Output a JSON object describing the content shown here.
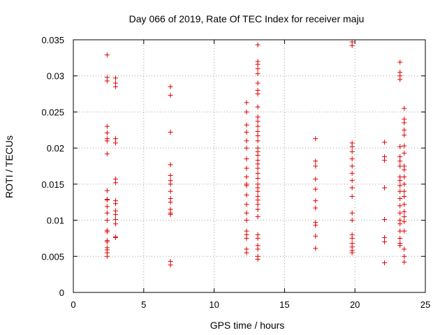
{
  "chart_data": {
    "type": "scatter",
    "title": "Day 066 of 2019, Rate Of TEC Index for receiver maju",
    "xlabel": "GPS time / hours",
    "ylabel": "ROTI / TECUs",
    "xlim": [
      0,
      25
    ],
    "ylim": [
      0,
      0.035
    ],
    "grid": true,
    "marker": "+",
    "color": "#e00000",
    "x_ticks": [
      0,
      5,
      10,
      15,
      20,
      25
    ],
    "x_tick_labels": [
      "0",
      "5",
      "10",
      "15",
      "20",
      "25"
    ],
    "y_ticks": [
      0,
      0.005,
      0.01,
      0.015,
      0.02,
      0.025,
      0.03,
      0.035
    ],
    "y_tick_labels": [
      "0",
      "0.005",
      "0.01",
      "0.015",
      "0.02",
      "0.025",
      "0.03",
      "0.035"
    ],
    "series": [
      {
        "name": "ROTI",
        "points": [
          [
            2.4,
            0.0329
          ],
          [
            2.4,
            0.0298
          ],
          [
            2.4,
            0.0293
          ],
          [
            2.4,
            0.023
          ],
          [
            2.4,
            0.0221
          ],
          [
            2.4,
            0.0213
          ],
          [
            2.4,
            0.021
          ],
          [
            2.4,
            0.0192
          ],
          [
            2.4,
            0.0141
          ],
          [
            2.4,
            0.0129
          ],
          [
            2.4,
            0.0128
          ],
          [
            2.4,
            0.0119
          ],
          [
            2.4,
            0.011
          ],
          [
            2.4,
            0.01
          ],
          [
            2.4,
            0.0086
          ],
          [
            2.4,
            0.0084
          ],
          [
            2.4,
            0.0072
          ],
          [
            2.4,
            0.007
          ],
          [
            2.4,
            0.0062
          ],
          [
            2.4,
            0.0059
          ],
          [
            2.4,
            0.0055
          ],
          [
            2.4,
            0.005
          ],
          [
            3.0,
            0.0297
          ],
          [
            3.0,
            0.029
          ],
          [
            3.0,
            0.0285
          ],
          [
            3.0,
            0.0213
          ],
          [
            3.0,
            0.0207
          ],
          [
            3.0,
            0.0157
          ],
          [
            3.0,
            0.0152
          ],
          [
            3.0,
            0.0127
          ],
          [
            3.0,
            0.0123
          ],
          [
            3.0,
            0.0113
          ],
          [
            3.0,
            0.0108
          ],
          [
            3.0,
            0.0101
          ],
          [
            3.0,
            0.0095
          ],
          [
            3.0,
            0.0077
          ],
          [
            3.0,
            0.0076
          ],
          [
            6.9,
            0.0285
          ],
          [
            6.9,
            0.0273
          ],
          [
            6.9,
            0.0222
          ],
          [
            6.9,
            0.0177
          ],
          [
            6.9,
            0.0162
          ],
          [
            6.9,
            0.0155
          ],
          [
            6.9,
            0.015
          ],
          [
            6.9,
            0.014
          ],
          [
            6.9,
            0.013
          ],
          [
            6.9,
            0.0125
          ],
          [
            6.9,
            0.0115
          ],
          [
            6.9,
            0.011
          ],
          [
            6.9,
            0.0108
          ],
          [
            6.9,
            0.0043
          ],
          [
            6.9,
            0.0038
          ],
          [
            12.3,
            0.0263
          ],
          [
            12.3,
            0.025
          ],
          [
            12.3,
            0.0232
          ],
          [
            12.3,
            0.0222
          ],
          [
            12.3,
            0.021
          ],
          [
            12.3,
            0.02
          ],
          [
            12.3,
            0.0185
          ],
          [
            12.3,
            0.0172
          ],
          [
            12.3,
            0.016
          ],
          [
            12.3,
            0.015
          ],
          [
            12.3,
            0.0148
          ],
          [
            12.3,
            0.0135
          ],
          [
            12.3,
            0.0122
          ],
          [
            12.3,
            0.011
          ],
          [
            12.3,
            0.01
          ],
          [
            12.3,
            0.0085
          ],
          [
            12.3,
            0.008
          ],
          [
            12.3,
            0.0075
          ],
          [
            12.3,
            0.006
          ],
          [
            12.3,
            0.0055
          ],
          [
            13.1,
            0.0343
          ],
          [
            13.1,
            0.032
          ],
          [
            13.1,
            0.0316
          ],
          [
            13.1,
            0.031
          ],
          [
            13.1,
            0.0303
          ],
          [
            13.1,
            0.029
          ],
          [
            13.1,
            0.028
          ],
          [
            13.1,
            0.0275
          ],
          [
            13.1,
            0.0257
          ],
          [
            13.1,
            0.0243
          ],
          [
            13.1,
            0.0237
          ],
          [
            13.1,
            0.023
          ],
          [
            13.1,
            0.0223
          ],
          [
            13.1,
            0.0217
          ],
          [
            13.1,
            0.021
          ],
          [
            13.1,
            0.02
          ],
          [
            13.1,
            0.0195
          ],
          [
            13.1,
            0.019
          ],
          [
            13.1,
            0.0183
          ],
          [
            13.1,
            0.0178
          ],
          [
            13.1,
            0.0172
          ],
          [
            13.1,
            0.0165
          ],
          [
            13.1,
            0.0158
          ],
          [
            13.1,
            0.015
          ],
          [
            13.1,
            0.0145
          ],
          [
            13.1,
            0.014
          ],
          [
            13.1,
            0.0133
          ],
          [
            13.1,
            0.0128
          ],
          [
            13.1,
            0.0122
          ],
          [
            13.1,
            0.0115
          ],
          [
            13.1,
            0.0105
          ],
          [
            13.1,
            0.008
          ],
          [
            13.1,
            0.0075
          ],
          [
            13.1,
            0.0065
          ],
          [
            13.1,
            0.006
          ],
          [
            13.1,
            0.005
          ],
          [
            13.1,
            0.0046
          ],
          [
            17.2,
            0.0213
          ],
          [
            17.2,
            0.0182
          ],
          [
            17.2,
            0.0175
          ],
          [
            17.2,
            0.0157
          ],
          [
            17.2,
            0.0143
          ],
          [
            17.2,
            0.0127
          ],
          [
            17.2,
            0.0117
          ],
          [
            17.2,
            0.0097
          ],
          [
            17.2,
            0.0093
          ],
          [
            17.2,
            0.0078
          ],
          [
            17.2,
            0.0061
          ],
          [
            19.8,
            0.0347
          ],
          [
            19.8,
            0.0342
          ],
          [
            19.8,
            0.0207
          ],
          [
            19.8,
            0.0202
          ],
          [
            19.8,
            0.0195
          ],
          [
            19.8,
            0.0185
          ],
          [
            19.8,
            0.0175
          ],
          [
            19.8,
            0.0165
          ],
          [
            19.8,
            0.0155
          ],
          [
            19.8,
            0.0145
          ],
          [
            19.8,
            0.0133
          ],
          [
            19.8,
            0.011
          ],
          [
            19.8,
            0.01
          ],
          [
            19.8,
            0.008
          ],
          [
            19.8,
            0.0075
          ],
          [
            19.8,
            0.0068
          ],
          [
            19.8,
            0.0063
          ],
          [
            19.8,
            0.0058
          ],
          [
            19.8,
            0.0055
          ],
          [
            22.1,
            0.0208
          ],
          [
            22.1,
            0.0188
          ],
          [
            22.1,
            0.0183
          ],
          [
            22.1,
            0.0145
          ],
          [
            22.1,
            0.0101
          ],
          [
            22.1,
            0.0076
          ],
          [
            22.1,
            0.007
          ],
          [
            22.1,
            0.0041
          ],
          [
            23.2,
            0.0319
          ],
          [
            23.2,
            0.0305
          ],
          [
            23.2,
            0.03
          ],
          [
            23.2,
            0.0295
          ],
          [
            23.2,
            0.0202
          ],
          [
            23.2,
            0.0188
          ],
          [
            23.2,
            0.0182
          ],
          [
            23.2,
            0.0175
          ],
          [
            23.2,
            0.016
          ],
          [
            23.2,
            0.0155
          ],
          [
            23.2,
            0.0148
          ],
          [
            23.2,
            0.014
          ],
          [
            23.2,
            0.013
          ],
          [
            23.2,
            0.012
          ],
          [
            23.2,
            0.011
          ],
          [
            23.2,
            0.01
          ],
          [
            23.2,
            0.0095
          ],
          [
            23.2,
            0.0085
          ],
          [
            23.2,
            0.0075
          ],
          [
            23.2,
            0.0068
          ],
          [
            23.2,
            0.0065
          ],
          [
            23.5,
            0.0255
          ],
          [
            23.5,
            0.024
          ],
          [
            23.5,
            0.0235
          ],
          [
            23.5,
            0.0225
          ],
          [
            23.5,
            0.0218
          ],
          [
            23.5,
            0.0203
          ],
          [
            23.5,
            0.0193
          ],
          [
            23.5,
            0.0175
          ],
          [
            23.5,
            0.017
          ],
          [
            23.5,
            0.016
          ],
          [
            23.5,
            0.015
          ],
          [
            23.5,
            0.014
          ],
          [
            23.5,
            0.0133
          ],
          [
            23.5,
            0.0122
          ],
          [
            23.5,
            0.0112
          ],
          [
            23.5,
            0.0105
          ],
          [
            23.5,
            0.0098
          ],
          [
            23.5,
            0.0085
          ],
          [
            23.5,
            0.006
          ],
          [
            23.5,
            0.005
          ],
          [
            23.5,
            0.0042
          ]
        ]
      }
    ]
  }
}
